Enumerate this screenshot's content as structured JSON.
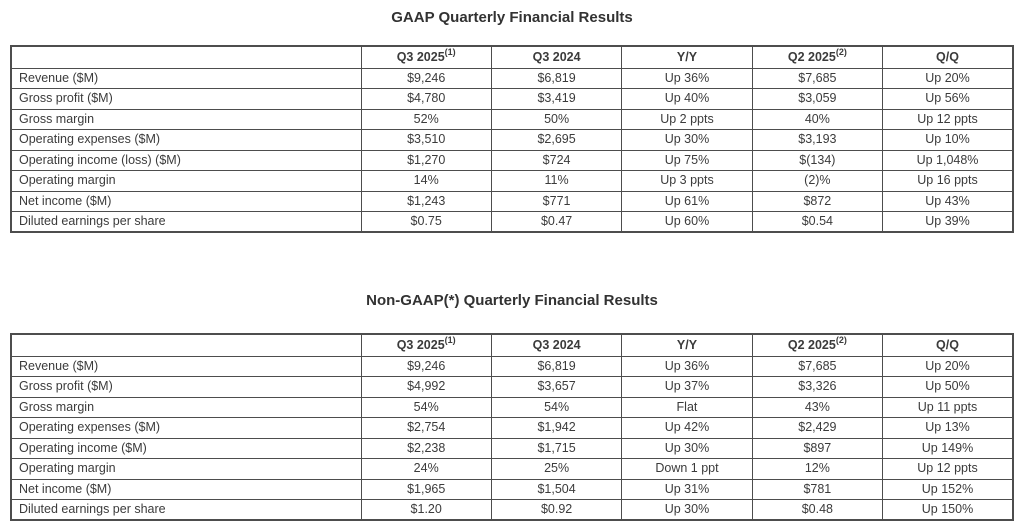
{
  "colors": {
    "text": "#3b3b3b",
    "border": "#4d4d4d",
    "background": "#ffffff",
    "title": "#323232"
  },
  "tables": [
    {
      "title": "GAAP Quarterly Financial Results",
      "columns": [
        {
          "label": "",
          "sup": ""
        },
        {
          "label": "Q3 2025",
          "sup": "(1)"
        },
        {
          "label": "Q3 2024",
          "sup": ""
        },
        {
          "label": "Y/Y",
          "sup": ""
        },
        {
          "label": "Q2 2025",
          "sup": "(2)"
        },
        {
          "label": "Q/Q",
          "sup": ""
        }
      ],
      "rows": [
        {
          "label": "Revenue ($M)",
          "values": [
            "$9,246",
            "$6,819",
            "Up 36%",
            "$7,685",
            "Up 20%"
          ]
        },
        {
          "label": "Gross profit ($M)",
          "values": [
            "$4,780",
            "$3,419",
            "Up 40%",
            "$3,059",
            "Up 56%"
          ]
        },
        {
          "label": "Gross margin",
          "values": [
            "52%",
            "50%",
            "Up 2 ppts",
            "40%",
            "Up 12 ppts"
          ]
        },
        {
          "label": "Operating expenses ($M)",
          "values": [
            "$3,510",
            "$2,695",
            "Up 30%",
            "$3,193",
            "Up 10%"
          ]
        },
        {
          "label": "Operating income (loss) ($M)",
          "values": [
            "$1,270",
            "$724",
            "Up 75%",
            "$(134)",
            "Up 1,048%"
          ]
        },
        {
          "label": "Operating margin",
          "values": [
            "14%",
            "11%",
            "Up 3 ppts",
            "(2)%",
            "Up 16 ppts"
          ]
        },
        {
          "label": "Net income ($M)",
          "values": [
            "$1,243",
            "$771",
            "Up 61%",
            "$872",
            "Up 43%"
          ]
        },
        {
          "label": "Diluted earnings per share",
          "values": [
            "$0.75",
            "$0.47",
            "Up 60%",
            "$0.54",
            "Up 39%"
          ]
        }
      ]
    },
    {
      "title": "Non-GAAP(*) Quarterly Financial Results",
      "columns": [
        {
          "label": "",
          "sup": ""
        },
        {
          "label": "Q3 2025",
          "sup": "(1)"
        },
        {
          "label": "Q3 2024",
          "sup": ""
        },
        {
          "label": "Y/Y",
          "sup": ""
        },
        {
          "label": "Q2 2025",
          "sup": "(2)"
        },
        {
          "label": "Q/Q",
          "sup": ""
        }
      ],
      "rows": [
        {
          "label": "Revenue ($M)",
          "values": [
            "$9,246",
            "$6,819",
            "Up 36%",
            "$7,685",
            "Up 20%"
          ]
        },
        {
          "label": "Gross profit ($M)",
          "values": [
            "$4,992",
            "$3,657",
            "Up 37%",
            "$3,326",
            "Up 50%"
          ]
        },
        {
          "label": "Gross margin",
          "values": [
            "54%",
            "54%",
            "Flat",
            "43%",
            "Up 11 ppts"
          ]
        },
        {
          "label": "Operating expenses ($M)",
          "values": [
            "$2,754",
            "$1,942",
            "Up 42%",
            "$2,429",
            "Up 13%"
          ]
        },
        {
          "label": "Operating income ($M)",
          "values": [
            "$2,238",
            "$1,715",
            "Up 30%",
            "$897",
            "Up 149%"
          ]
        },
        {
          "label": "Operating margin",
          "values": [
            "24%",
            "25%",
            "Down 1 ppt",
            "12%",
            "Up 12 ppts"
          ]
        },
        {
          "label": "Net income ($M)",
          "values": [
            "$1,965",
            "$1,504",
            "Up 31%",
            "$781",
            "Up 152%"
          ]
        },
        {
          "label": "Diluted earnings per share",
          "values": [
            "$1.20",
            "$0.92",
            "Up 30%",
            "$0.48",
            "Up 150%"
          ]
        }
      ]
    }
  ]
}
